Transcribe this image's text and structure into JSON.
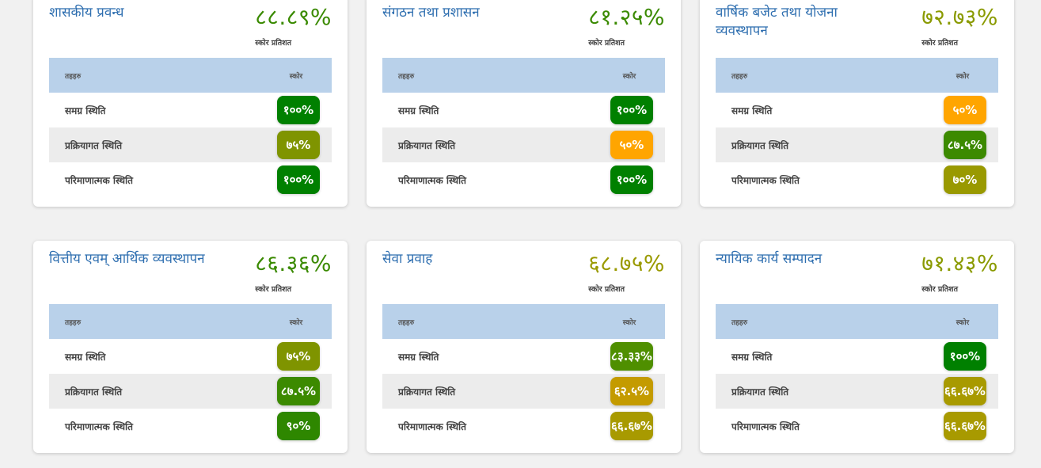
{
  "labels": {
    "score_percent": "स्कोर प्रतिशत",
    "col_name": "तहहरु",
    "col_score": "स्कोर"
  },
  "cards": [
    {
      "title": "शासकीय प्रवन्ध",
      "score": "८८.८९%",
      "score_color": "#3a8a00",
      "rows": [
        {
          "name": "समग्र स्थिति",
          "value": "१००%",
          "color": "#008000"
        },
        {
          "name": "प्रक्रियागत स्थिति",
          "value": "७५%",
          "color": "#7f9400"
        },
        {
          "name": "परिमाणात्मक स्थिति",
          "value": "१००%",
          "color": "#008000"
        }
      ]
    },
    {
      "title": "संगठन तथा प्रशासन",
      "score": "८१.२५%",
      "score_color": "#3a8a00",
      "rows": [
        {
          "name": "समग्र स्थिति",
          "value": "१००%",
          "color": "#008000"
        },
        {
          "name": "प्रक्रियागत स्थिति",
          "value": "५०%",
          "color": "#ffa500"
        },
        {
          "name": "परिमाणात्मक स्थिति",
          "value": "१००%",
          "color": "#008000"
        }
      ]
    },
    {
      "title": "वार्षिक बजेट तथा योजना व्यवस्थापन",
      "score": "७२.७३%",
      "score_color": "#8a9a00",
      "rows": [
        {
          "name": "समग्र स्थिति",
          "value": "५०%",
          "color": "#ffa500"
        },
        {
          "name": "प्रक्रियागत स्थिति",
          "value": "८७.५%",
          "color": "#3c8a00"
        },
        {
          "name": "परिमाणात्मक स्थिति",
          "value": "७०%",
          "color": "#999900"
        }
      ]
    },
    {
      "title": "वित्तीय एवम् आर्थिक व्यवस्थापन",
      "score": "८६.३६%",
      "score_color": "#3a8a00",
      "rows": [
        {
          "name": "समग्र स्थिति",
          "value": "७५%",
          "color": "#7f9400"
        },
        {
          "name": "प्रक्रियागत स्थिति",
          "value": "८७.५%",
          "color": "#3c8a00"
        },
        {
          "name": "परिमाणात्मक स्थिति",
          "value": "९०%",
          "color": "#2e8700"
        }
      ]
    },
    {
      "title": "सेवा प्रवाह",
      "score": "६८.७५%",
      "score_color": "#9a9a00",
      "rows": [
        {
          "name": "समग्र स्थिति",
          "value": "८३.३३%",
          "color": "#4f8f00"
        },
        {
          "name": "प्रक्रियागत स्थिति",
          "value": "६२.५%",
          "color": "#c49b00"
        },
        {
          "name": "परिमाणात्मक स्थिति",
          "value": "६६.६७%",
          "color": "#a89a00"
        }
      ]
    },
    {
      "title": "न्यायिक कार्य सम्पादन",
      "score": "७१.४३%",
      "score_color": "#8a9a00",
      "rows": [
        {
          "name": "समग्र स्थिति",
          "value": "१००%",
          "color": "#008000"
        },
        {
          "name": "प्रक्रियागत स्थिति",
          "value": "६६.६७%",
          "color": "#a89a00"
        },
        {
          "name": "परिमाणात्मक स्थिति",
          "value": "६६.६७%",
          "color": "#a89a00"
        }
      ]
    }
  ]
}
